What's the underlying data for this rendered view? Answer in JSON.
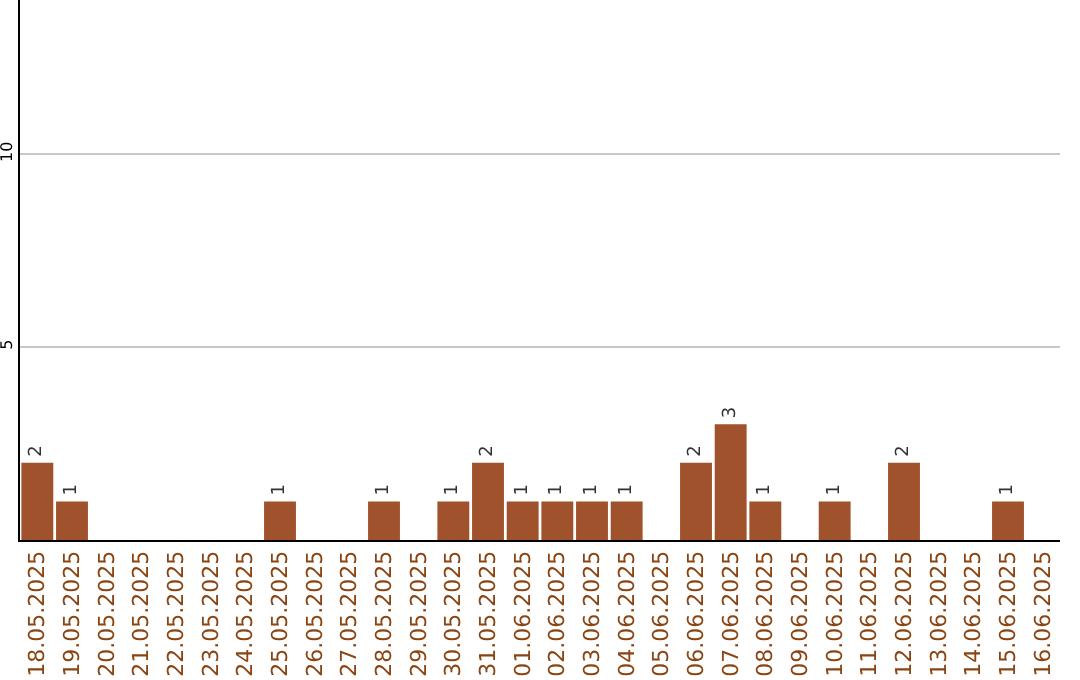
{
  "chart_data": {
    "type": "bar",
    "categories": [
      "18.05.2025",
      "19.05.2025",
      "20.05.2025",
      "21.05.2025",
      "22.05.2025",
      "23.05.2025",
      "24.05.2025",
      "25.05.2025",
      "26.05.2025",
      "27.05.2025",
      "28.05.2025",
      "29.05.2025",
      "30.05.2025",
      "31.05.2025",
      "01.06.2025",
      "02.06.2025",
      "03.06.2025",
      "04.06.2025",
      "05.06.2025",
      "06.06.2025",
      "07.06.2025",
      "08.06.2025",
      "09.06.2025",
      "10.06.2025",
      "11.06.2025",
      "12.06.2025",
      "13.06.2025",
      "14.06.2025",
      "15.06.2025",
      "16.06.2025"
    ],
    "values": [
      2,
      1,
      0,
      0,
      0,
      0,
      0,
      1,
      0,
      0,
      1,
      0,
      1,
      2,
      1,
      1,
      1,
      1,
      0,
      2,
      3,
      1,
      0,
      1,
      0,
      2,
      0,
      0,
      1,
      0
    ],
    "value_labels": [
      "2",
      "1",
      null,
      null,
      null,
      null,
      null,
      "1",
      null,
      null,
      "1",
      null,
      "1",
      "2",
      "1",
      "1",
      "1",
      "1",
      null,
      "2",
      "3",
      "1",
      null,
      "1",
      null,
      "2",
      null,
      null,
      "1",
      null
    ],
    "color": "#a0522d",
    "ylim": [
      0,
      14
    ],
    "yticks": [
      5,
      10
    ],
    "grid": "y"
  }
}
